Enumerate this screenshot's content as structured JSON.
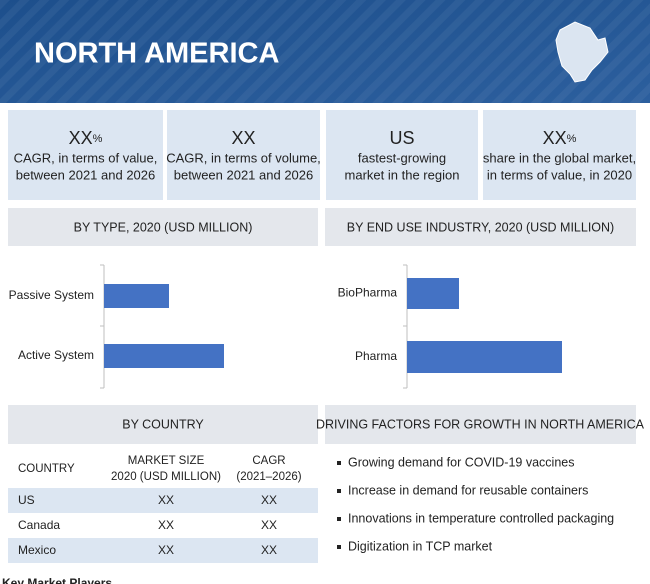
{
  "header": {
    "title": "NORTH AMERICA"
  },
  "stats": [
    {
      "value": "XX",
      "unit": "%",
      "lines": [
        "CAGR, in terms of value,",
        "between 2021 and 2026"
      ]
    },
    {
      "value": "XX",
      "lines": [
        "CAGR, in terms of volume,",
        "between 2021 and 2026"
      ]
    },
    {
      "value": "US",
      "lines": [
        "fastest-growing",
        "market in the region"
      ]
    },
    {
      "value": "XX",
      "unit": "%",
      "lines": [
        "share in the global market,",
        "in terms of value, in 2020"
      ]
    }
  ],
  "chart_data": [
    {
      "type": "bar",
      "title": "BY TYPE, 2020 (USD MILLION)",
      "categories": [
        "Passive System",
        "Active System"
      ],
      "values": [
        65,
        120
      ],
      "color": "#4472c4"
    },
    {
      "type": "bar",
      "title": "BY END USE INDUSTRY, 2020 (USD MILLION)",
      "categories": [
        "BioPharma",
        "Pharma"
      ],
      "values": [
        52,
        155
      ],
      "color": "#4472c4"
    }
  ],
  "country": {
    "title": "BY COUNTRY",
    "columns": [
      [
        "COUNTRY"
      ],
      [
        "MARKET SIZE",
        "2020 (USD MILLION)"
      ],
      [
        "CAGR",
        "(2021–2026)"
      ]
    ],
    "rows": [
      [
        "US",
        "XX",
        "XX"
      ],
      [
        "Canada",
        "XX",
        "XX"
      ],
      [
        "Mexico",
        "XX",
        "XX"
      ]
    ]
  },
  "drivers": {
    "title": "DRIVING FACTORS FOR GROWTH IN NORTH AMERICA",
    "items": [
      "Growing demand for COVID-19 vaccines",
      "Increase in demand for reusable containers",
      "Innovations in temperature controlled packaging",
      "Digitization in TCP market"
    ]
  },
  "footer": "Key Market Players"
}
